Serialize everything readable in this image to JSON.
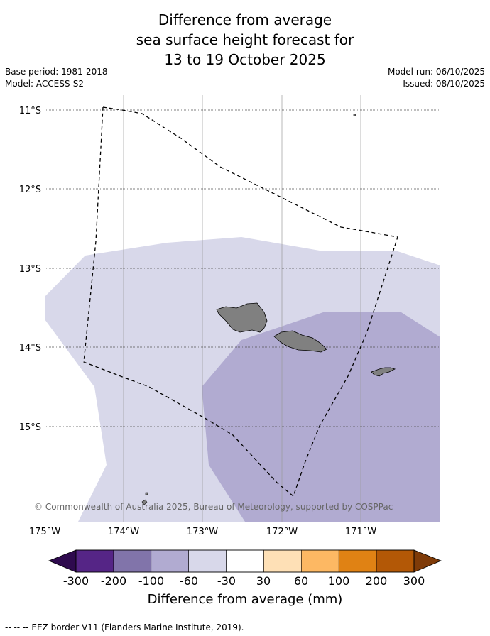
{
  "title": {
    "line1": "Difference from average",
    "line2": "sea surface height forecast for",
    "line3": "13 to 19 October 2025"
  },
  "meta": {
    "base_period": "Base period: 1981-2018",
    "model": "Model: ACCESS-S2",
    "model_run": "Model run: 06/10/2025",
    "issued": "Issued: 08/10/2025"
  },
  "map": {
    "latitude_labels": [
      "11°S",
      "12°S",
      "13°S",
      "14°S",
      "15°S"
    ],
    "longitude_labels": [
      "175°W",
      "174°W",
      "173°W",
      "172°W",
      "171°W"
    ],
    "copyright": "© Commonwealth of Australia 2025, Bureau of Meteorology, supported by COSPPac",
    "anomaly_fills": [
      {
        "range": "-60 to -30",
        "color": "#d8d8ea"
      },
      {
        "range": "-100 to -60",
        "color": "#b1abd1"
      }
    ],
    "land_color": "#808080",
    "border_style": "dashed"
  },
  "colorbar": {
    "ticks": [
      "-300",
      "-200",
      "-100",
      "-60",
      "-30",
      "30",
      "60",
      "100",
      "200",
      "300"
    ],
    "colors": [
      "#2e0a4e",
      "#552586",
      "#8174aa",
      "#b1abd1",
      "#d8d8ea",
      "#ffffff",
      "#fee0b6",
      "#fdb863",
      "#e08214",
      "#b35806",
      "#7f3b08"
    ],
    "label": "Difference from average (mm)"
  },
  "footer": {
    "legend_line": "--  --  -- EEZ border V11 (Flanders Marine Institute, 2019)."
  }
}
